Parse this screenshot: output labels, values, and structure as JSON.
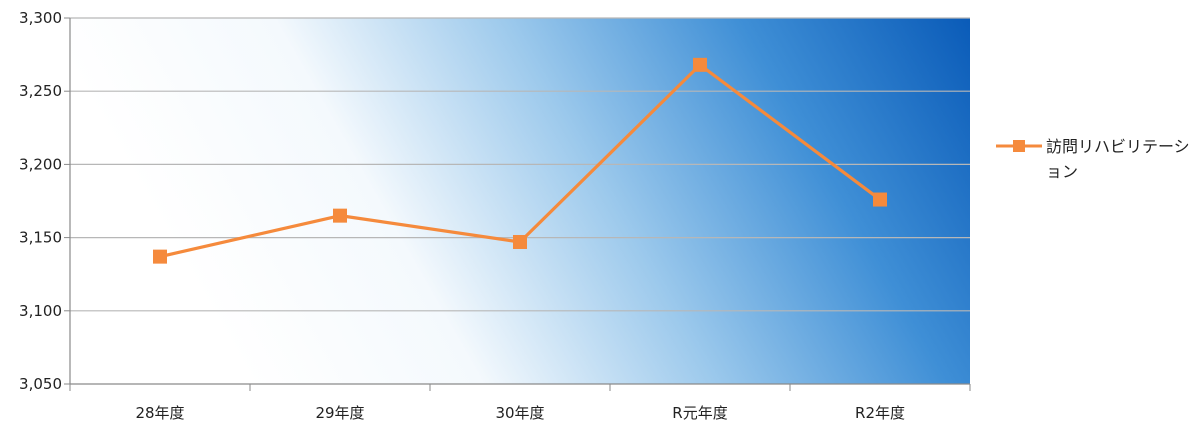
{
  "chart_data": {
    "type": "line",
    "categories": [
      "28年度",
      "29年度",
      "30年度",
      "R元年度",
      "R2年度"
    ],
    "series": [
      {
        "name": "訪問リハビリテーション",
        "values": [
          3137,
          3165,
          3147,
          3268,
          3176
        ],
        "color": "#f58a3c",
        "marker": "square"
      }
    ],
    "ylim": [
      3050,
      3300
    ],
    "yticks": [
      3050,
      3100,
      3150,
      3200,
      3250,
      3300
    ],
    "ytick_labels": [
      "3,050",
      "3,100",
      "3,150",
      "3,200",
      "3,250",
      "3,300"
    ],
    "grid": true,
    "legend_position": "right",
    "background": "gradient-white-to-blue"
  }
}
